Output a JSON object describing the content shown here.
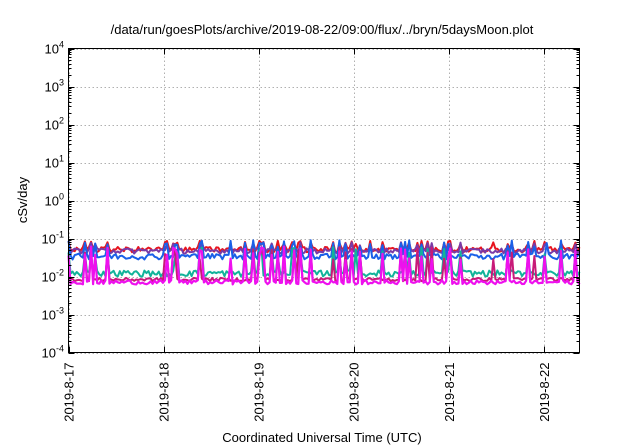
{
  "chart_data": {
    "type": "line",
    "title": "/data/run/goesPlots/archive/2019-08-22/09:00/flux/../bryn/5daysMoon.plot",
    "xlabel": "Coordinated Universal Time (UTC)",
    "ylabel": "cSv/day",
    "yscale": "log",
    "ylim": [
      0.0001,
      10000
    ],
    "xlim": [
      "2019-08-17T00:00",
      "2019-08-22T09:00"
    ],
    "grid": true,
    "legend": "none",
    "x_ticks": [
      "2019-8-17",
      "2019-8-18",
      "2019-8-19",
      "2019-8-20",
      "2019-8-21",
      "2019-8-22"
    ],
    "y_ticks": [
      {
        "base": "10",
        "exp": "-4"
      },
      {
        "base": "10",
        "exp": "-3"
      },
      {
        "base": "10",
        "exp": "-2"
      },
      {
        "base": "10",
        "exp": "-1"
      },
      {
        "base": "10",
        "exp": "0"
      },
      {
        "base": "10",
        "exp": "1"
      },
      {
        "base": "10",
        "exp": "2"
      },
      {
        "base": "10",
        "exp": "3"
      },
      {
        "base": "10",
        "exp": "4"
      }
    ],
    "series": [
      {
        "color": "#e8141e",
        "base_low": 0.043,
        "base_high": 0.06,
        "spike_max": 0.088
      },
      {
        "color": "#7a3aa6",
        "base_low": 0.04,
        "base_high": 0.055,
        "spike_max": 0.08
      },
      {
        "color": "#1a60e8",
        "base_low": 0.028,
        "base_high": 0.04,
        "spike_max": 0.09
      },
      {
        "color": "#12b39a",
        "base_low": 0.01,
        "base_high": 0.0145,
        "spike_max": 0.06
      },
      {
        "color": "#c81a78",
        "base_low": 0.0075,
        "base_high": 0.0092,
        "spike_max": 0.06
      },
      {
        "color": "#ee10ee",
        "base_low": 0.0062,
        "base_high": 0.008,
        "spike_max": 0.062
      }
    ]
  }
}
